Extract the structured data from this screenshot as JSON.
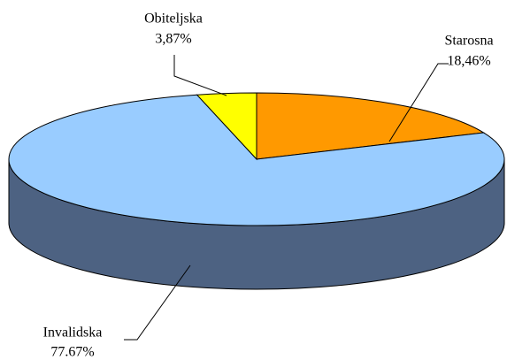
{
  "chart_data": {
    "type": "pie3d",
    "categories": [
      "Starosna",
      "Invalidska",
      "Obiteljska"
    ],
    "values": [
      18.46,
      77.67,
      3.87
    ],
    "value_labels": [
      "18,46%",
      "77.67%",
      "3,87%"
    ],
    "colors": [
      "#ff9900",
      "#99ccff",
      "#ffff00"
    ],
    "side_colors": [
      "#b36b00",
      "#4d6282",
      "#b3b300"
    ]
  }
}
